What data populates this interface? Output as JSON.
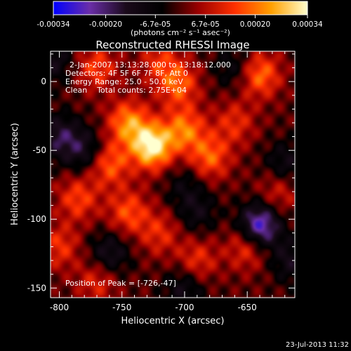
{
  "chart_data": {
    "type": "heatmap",
    "title": "Reconstructed RHESSI Image",
    "xlabel": "Heliocentric X (arcsec)",
    "ylabel": "Heliocentric Y (arcsec)",
    "xlim": [
      -807,
      -612
    ],
    "ylim": [
      -157,
      22
    ],
    "xticks": [
      -800,
      -750,
      -700,
      -650
    ],
    "yticks": [
      0,
      -50,
      -100,
      -150
    ],
    "colorbar": {
      "range": [
        -0.00034,
        0.00034
      ],
      "ticks": [
        -0.00034,
        -0.0002,
        -6.7e-05,
        6.7e-05,
        0.0002,
        0.00034
      ],
      "tick_labels": [
        "-0.00034",
        "-0.00020",
        "-6.7e-05",
        "6.7e-05",
        "0.00020",
        "0.00034"
      ],
      "label": "(photons cm⁻² s⁻¹ asec⁻²)",
      "colors": [
        "#0000ff",
        "#6a2ea8",
        "#1a0a1a",
        "#000000",
        "#9b0000",
        "#ff3000",
        "#ffa000",
        "#ffffcf"
      ]
    },
    "annotations": [
      "2-Jan-2007 13:13:28.000 to 13:18:12.000",
      "Detectors: 4F 5F 6F 7F 8F, Att 0",
      "Energy Range: 25.0 - 50.0 keV",
      "Clean    Total counts: 2.75E+04"
    ],
    "peak_label": "Position of Peak = [-726,-47]",
    "peak": [
      -726,
      -47
    ],
    "sources": [
      {
        "x": -726,
        "y": -47,
        "amp": 0.00034
      },
      {
        "x": -745,
        "y": -30,
        "amp": 0.00022
      },
      {
        "x": -700,
        "y": -35,
        "amp": 0.0002
      },
      {
        "x": -705,
        "y": -2,
        "amp": 0.00018
      },
      {
        "x": -680,
        "y": -55,
        "amp": 0.00018
      },
      {
        "x": -760,
        "y": -60,
        "amp": 0.00018
      },
      {
        "x": -745,
        "y": -95,
        "amp": 0.00016
      },
      {
        "x": -785,
        "y": -85,
        "amp": 0.00015
      },
      {
        "x": -640,
        "y": 5,
        "amp": 0.0002
      },
      {
        "x": -650,
        "y": -120,
        "amp": 0.00015
      },
      {
        "x": -770,
        "y": 10,
        "amp": 0.00015
      },
      {
        "x": -690,
        "y": -130,
        "amp": 0.00013
      },
      {
        "x": -720,
        "y": -110,
        "amp": 0.00012
      },
      {
        "x": -800,
        "y": -120,
        "amp": 0.00013
      },
      {
        "x": -770,
        "y": -145,
        "amp": 0.00012
      },
      {
        "x": -625,
        "y": -80,
        "amp": 0.00011
      },
      {
        "x": -660,
        "y": -30,
        "amp": 0.00012
      },
      {
        "x": -720,
        "y": 15,
        "amp": 0.00012
      },
      {
        "x": -800,
        "y": -40,
        "amp": -0.00016
      },
      {
        "x": -640,
        "y": -105,
        "amp": -0.0003
      },
      {
        "x": -620,
        "y": -60,
        "amp": -0.00012
      },
      {
        "x": -780,
        "y": -50,
        "amp": -0.00014
      },
      {
        "x": -690,
        "y": -95,
        "amp": -0.0001
      },
      {
        "x": -805,
        "y": 15,
        "amp": -0.00012
      },
      {
        "x": -760,
        "y": -125,
        "amp": -0.00014
      },
      {
        "x": -700,
        "y": -150,
        "amp": -0.00012
      },
      {
        "x": -660,
        "y": 10,
        "amp": -0.0001
      },
      {
        "x": -615,
        "y": -130,
        "amp": -0.00012
      },
      {
        "x": -700,
        "y": -75,
        "amp": -8e-05
      }
    ]
  },
  "footer": {
    "timestamp": "23-Jul-2013 11:32"
  }
}
